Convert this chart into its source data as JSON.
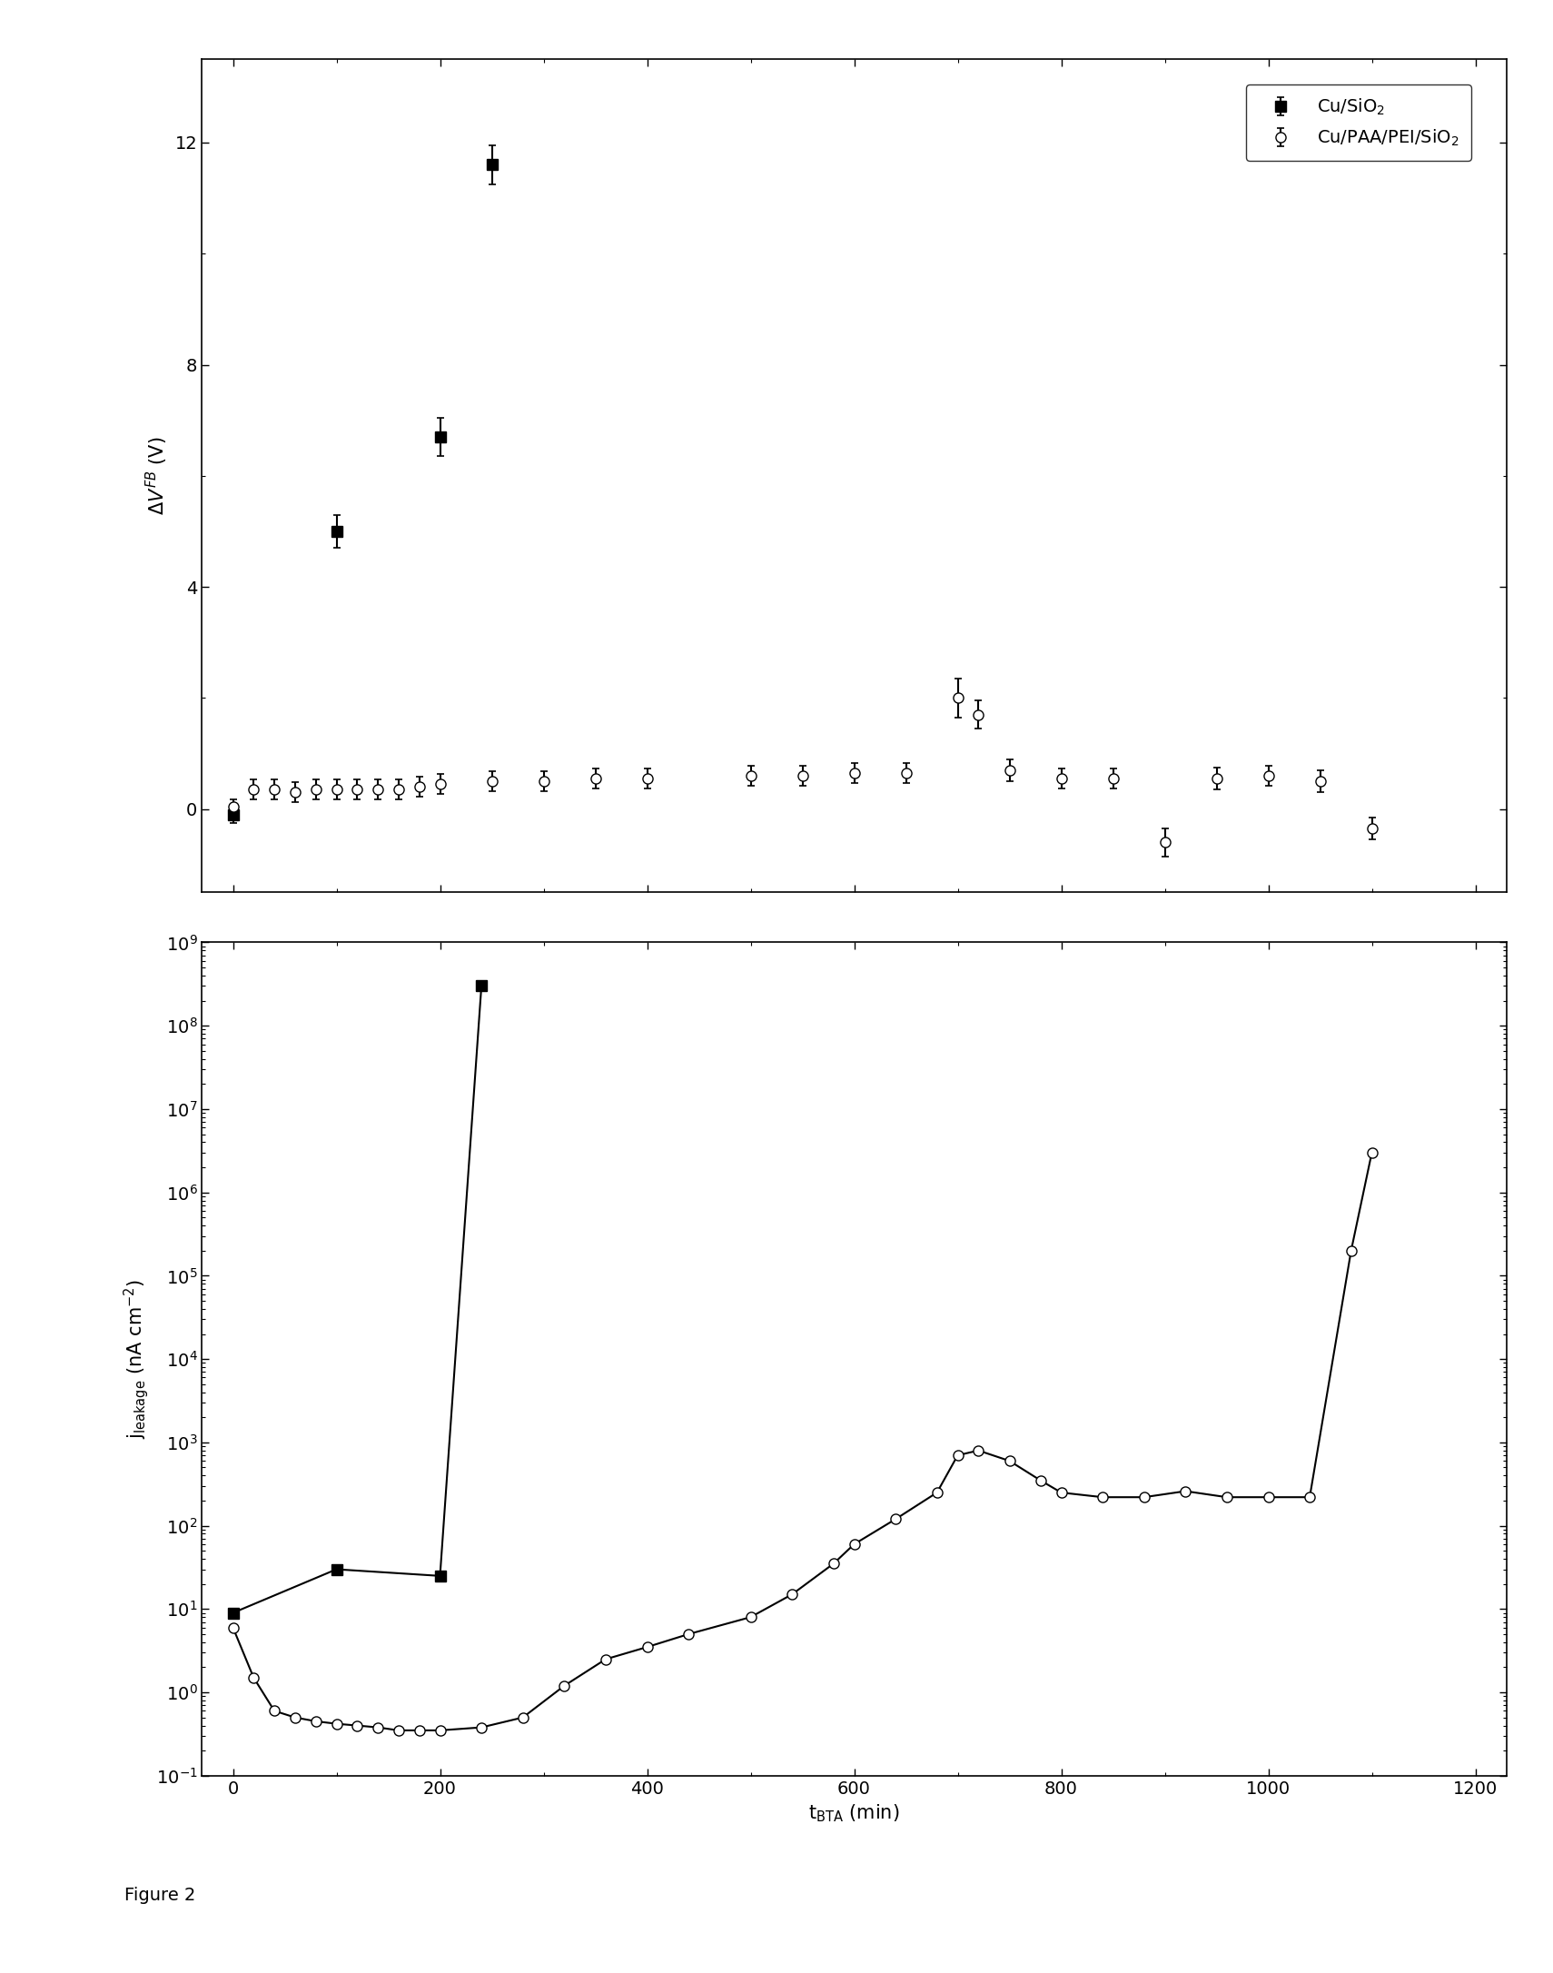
{
  "figure_caption": "Figure 2",
  "top_panel": {
    "ylim": [
      -1.5,
      13.5
    ],
    "xlim": [
      -30,
      1230
    ],
    "series1": {
      "label": "Cu/SiO$_2$",
      "x": [
        0,
        100,
        200,
        250
      ],
      "y": [
        -0.1,
        5.0,
        6.7,
        11.6
      ],
      "yerr": [
        0.15,
        0.3,
        0.35,
        0.35
      ],
      "marker": "s",
      "markersize": 8,
      "linewidth": 1.5
    },
    "series2": {
      "label": "Cu/PAA/PEI/SiO$_2$",
      "x": [
        0,
        20,
        40,
        60,
        80,
        100,
        120,
        140,
        160,
        180,
        200,
        250,
        300,
        350,
        400,
        500,
        550,
        600,
        650,
        700,
        720,
        750,
        800,
        850,
        900,
        950,
        1000,
        1050,
        1100
      ],
      "y": [
        0.05,
        0.35,
        0.35,
        0.3,
        0.35,
        0.35,
        0.35,
        0.35,
        0.35,
        0.4,
        0.45,
        0.5,
        0.5,
        0.55,
        0.55,
        0.6,
        0.6,
        0.65,
        0.65,
        2.0,
        1.7,
        0.7,
        0.55,
        0.55,
        -0.6,
        0.55,
        0.6,
        0.5,
        -0.35
      ],
      "yerr": [
        0.12,
        0.18,
        0.18,
        0.18,
        0.18,
        0.18,
        0.18,
        0.18,
        0.18,
        0.18,
        0.18,
        0.18,
        0.18,
        0.18,
        0.18,
        0.18,
        0.18,
        0.18,
        0.18,
        0.35,
        0.25,
        0.2,
        0.18,
        0.18,
        0.25,
        0.2,
        0.18,
        0.2,
        0.2
      ],
      "marker": "o",
      "markersize": 8,
      "linewidth": 1.5
    }
  },
  "bottom_panel": {
    "xlim": [
      -30,
      1230
    ],
    "ylim_log": [
      0.1,
      1000000000.0
    ],
    "series1": {
      "label": "Cu/SiO$_2$",
      "x": [
        0,
        100,
        200,
        240
      ],
      "y": [
        9,
        30,
        25,
        300000000.0
      ],
      "marker": "s",
      "markersize": 8,
      "linewidth": 1.5
    },
    "series2": {
      "label": "Cu/PAA/PEI/SiO$_2$",
      "x": [
        0,
        20,
        40,
        60,
        80,
        100,
        120,
        140,
        160,
        180,
        200,
        240,
        280,
        320,
        360,
        400,
        440,
        500,
        540,
        580,
        600,
        640,
        680,
        700,
        720,
        750,
        780,
        800,
        840,
        880,
        920,
        960,
        1000,
        1040,
        1080,
        1100
      ],
      "y": [
        6.0,
        1.5,
        0.6,
        0.5,
        0.45,
        0.42,
        0.4,
        0.38,
        0.35,
        0.35,
        0.35,
        0.38,
        0.5,
        1.2,
        2.5,
        3.5,
        5.0,
        8.0,
        15,
        35,
        60,
        120,
        250,
        700,
        800,
        600,
        350,
        250,
        220,
        220,
        260,
        220,
        220,
        220,
        200000.0,
        3000000.0
      ],
      "marker": "o",
      "markersize": 8,
      "linewidth": 1.5
    }
  },
  "font_size": 15,
  "tick_labelsize": 14
}
